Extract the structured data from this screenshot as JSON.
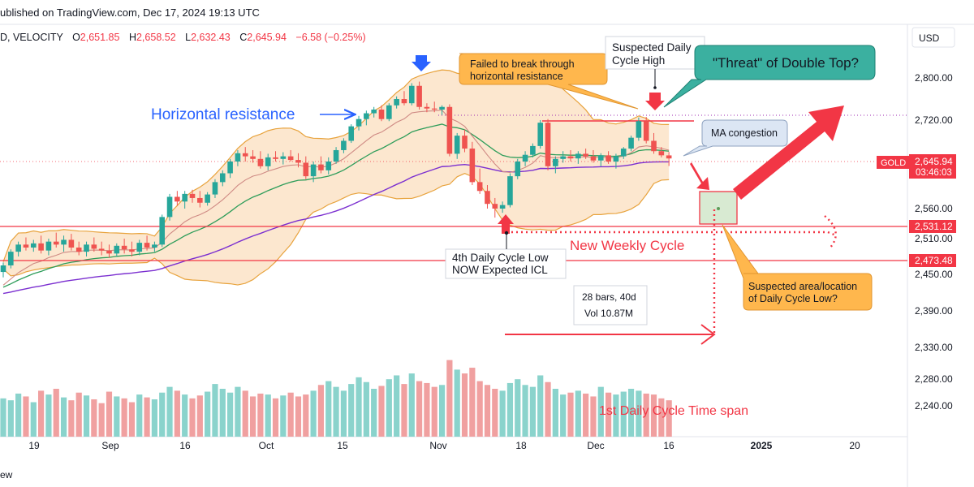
{
  "header": {
    "published": "ublished on TradingView.com, Dec 17, 2024 19:13 UTC"
  },
  "legend": {
    "symbol": "D, VELOCITY",
    "o_label": "O",
    "o_value": "2,651.85",
    "h_label": "H",
    "h_value": "2,658.52",
    "l_label": "L",
    "l_value": "2,632.43",
    "c_label": "C",
    "c_value": "2,645.94",
    "change": "−6.58 (−0.25%)"
  },
  "footer": {
    "partial_text": "ew"
  },
  "colors": {
    "up": "#26a69a",
    "down": "#ef5350",
    "vol_up": "#8ad3cc",
    "vol_down": "#f0a0a0",
    "band_fill": "#fbe3c7",
    "band_line": "#e8a33d",
    "ma_purple": "#7b2fd0",
    "ma_green": "#2e9d5a",
    "ma_brown": "#cf8a84",
    "accent_red": "#f23645",
    "blue_text": "#2962ff"
  },
  "chart_data": {
    "type": "candlestick",
    "instrument": "GOLD",
    "y_axis": {
      "currency": "USD",
      "ticks": [
        2800,
        2720,
        2640,
        2560,
        2510,
        2450,
        2390,
        2330,
        2280,
        2240
      ],
      "tick_labels": [
        "2,800.00",
        "2,720.00",
        "2,640.00",
        "2,560.00",
        "2,510.00",
        "2,450.00",
        "2,390.00",
        "2,330.00",
        "2,280.00",
        "2,240.00"
      ]
    },
    "x_axis": {
      "labels": [
        "19",
        "Sep",
        "16",
        "Oct",
        "15",
        "Nov",
        "18",
        "Dec",
        "16",
        "2025",
        "20"
      ]
    },
    "price_tags": [
      {
        "label": "GOLD",
        "value": "2,645.94",
        "countdown": "03:46:03"
      },
      {
        "value": "2,531.12"
      },
      {
        "value": "2,473.48"
      }
    ],
    "candles": [
      [
        2454,
        2470,
        2445,
        2465
      ],
      [
        2465,
        2492,
        2460,
        2488
      ],
      [
        2488,
        2505,
        2480,
        2500
      ],
      [
        2500,
        2512,
        2490,
        2495
      ],
      [
        2495,
        2508,
        2488,
        2502
      ],
      [
        2502,
        2515,
        2485,
        2490
      ],
      [
        2490,
        2510,
        2482,
        2505
      ],
      [
        2505,
        2520,
        2495,
        2500
      ],
      [
        2500,
        2515,
        2488,
        2508
      ],
      [
        2508,
        2518,
        2490,
        2495
      ],
      [
        2495,
        2505,
        2482,
        2488
      ],
      [
        2488,
        2505,
        2480,
        2500
      ],
      [
        2500,
        2512,
        2488,
        2493
      ],
      [
        2493,
        2505,
        2482,
        2490
      ],
      [
        2490,
        2500,
        2478,
        2485
      ],
      [
        2485,
        2502,
        2480,
        2498
      ],
      [
        2498,
        2510,
        2485,
        2492
      ],
      [
        2492,
        2505,
        2480,
        2488
      ],
      [
        2488,
        2508,
        2482,
        2503
      ],
      [
        2503,
        2515,
        2490,
        2495
      ],
      [
        2495,
        2505,
        2488,
        2500
      ],
      [
        2500,
        2550,
        2496,
        2546
      ],
      [
        2546,
        2585,
        2540,
        2580
      ],
      [
        2580,
        2590,
        2565,
        2572
      ],
      [
        2572,
        2590,
        2560,
        2585
      ],
      [
        2585,
        2592,
        2570,
        2578
      ],
      [
        2578,
        2590,
        2562,
        2570
      ],
      [
        2570,
        2588,
        2565,
        2584
      ],
      [
        2584,
        2610,
        2578,
        2605
      ],
      [
        2605,
        2625,
        2598,
        2620
      ],
      [
        2620,
        2645,
        2612,
        2640
      ],
      [
        2640,
        2662,
        2632,
        2656
      ],
      [
        2656,
        2668,
        2640,
        2650
      ],
      [
        2650,
        2662,
        2638,
        2645
      ],
      [
        2645,
        2660,
        2628,
        2632
      ],
      [
        2632,
        2655,
        2625,
        2648
      ],
      [
        2648,
        2660,
        2640,
        2645
      ],
      [
        2645,
        2658,
        2635,
        2650
      ],
      [
        2650,
        2662,
        2640,
        2643
      ],
      [
        2643,
        2656,
        2630,
        2638
      ],
      [
        2638,
        2650,
        2610,
        2615
      ],
      [
        2615,
        2640,
        2605,
        2635
      ],
      [
        2635,
        2650,
        2620,
        2625
      ],
      [
        2625,
        2648,
        2618,
        2640
      ],
      [
        2640,
        2668,
        2636,
        2662
      ],
      [
        2662,
        2685,
        2656,
        2680
      ],
      [
        2680,
        2712,
        2676,
        2708
      ],
      [
        2708,
        2728,
        2700,
        2722
      ],
      [
        2722,
        2738,
        2710,
        2733
      ],
      [
        2733,
        2745,
        2725,
        2740
      ],
      [
        2740,
        2748,
        2718,
        2722
      ],
      [
        2722,
        2752,
        2718,
        2748
      ],
      [
        2748,
        2765,
        2742,
        2760
      ],
      [
        2760,
        2775,
        2748,
        2752
      ],
      [
        2752,
        2790,
        2748,
        2785
      ],
      [
        2785,
        2793,
        2740,
        2745
      ],
      [
        2745,
        2752,
        2735,
        2742
      ],
      [
        2742,
        2755,
        2735,
        2740
      ],
      [
        2740,
        2748,
        2730,
        2745
      ],
      [
        2745,
        2750,
        2650,
        2655
      ],
      [
        2655,
        2695,
        2645,
        2690
      ],
      [
        2690,
        2702,
        2658,
        2665
      ],
      [
        2665,
        2678,
        2600,
        2605
      ],
      [
        2605,
        2628,
        2585,
        2590
      ],
      [
        2590,
        2600,
        2560,
        2568
      ],
      [
        2568,
        2578,
        2545,
        2560
      ],
      [
        2560,
        2572,
        2553,
        2566
      ],
      [
        2566,
        2620,
        2562,
        2615
      ],
      [
        2615,
        2645,
        2610,
        2640
      ],
      [
        2640,
        2660,
        2632,
        2653
      ],
      [
        2653,
        2675,
        2648,
        2670
      ],
      [
        2670,
        2720,
        2665,
        2715
      ],
      [
        2715,
        2722,
        2625,
        2632
      ],
      [
        2632,
        2650,
        2620,
        2645
      ],
      [
        2645,
        2660,
        2638,
        2650
      ],
      [
        2650,
        2662,
        2640,
        2646
      ],
      [
        2646,
        2660,
        2636,
        2655
      ],
      [
        2655,
        2665,
        2645,
        2650
      ],
      [
        2650,
        2662,
        2638,
        2642
      ],
      [
        2642,
        2656,
        2632,
        2652
      ],
      [
        2652,
        2660,
        2636,
        2640
      ],
      [
        2640,
        2655,
        2628,
        2650
      ],
      [
        2650,
        2668,
        2645,
        2665
      ],
      [
        2665,
        2690,
        2660,
        2686
      ],
      [
        2686,
        2725,
        2680,
        2718
      ],
      [
        2718,
        2726,
        2675,
        2680
      ],
      [
        2680,
        2695,
        2655,
        2660
      ],
      [
        2660,
        2668,
        2648,
        2652
      ],
      [
        2651.85,
        2658.52,
        2632.43,
        2645.94
      ]
    ],
    "volume": [
      40,
      38,
      45,
      42,
      36,
      48,
      44,
      50,
      41,
      38,
      46,
      43,
      39,
      35,
      47,
      42,
      40,
      36,
      44,
      41,
      39,
      46,
      52,
      48,
      44,
      40,
      43,
      47,
      55,
      50,
      46,
      52,
      48,
      42,
      45,
      44,
      40,
      43,
      46,
      42,
      44,
      48,
      54,
      58,
      52,
      48,
      55,
      62,
      57,
      50,
      53,
      60,
      64,
      55,
      66,
      58,
      56,
      52,
      54,
      80,
      70,
      66,
      72,
      58,
      54,
      50,
      48,
      56,
      60,
      54,
      52,
      64,
      57,
      50,
      44,
      46,
      48,
      45,
      42,
      52,
      46,
      44,
      47,
      50,
      48,
      45,
      44,
      40,
      38
    ],
    "annotations": [
      {
        "text": "Horizontal resistance"
      },
      {
        "text": "Failed to break through horizontal resistance"
      },
      {
        "text": "Suspected Daily Cycle High"
      },
      {
        "text": "\"Threat\" of Double Top?"
      },
      {
        "text": "MA congestion"
      },
      {
        "text": "New Weekly Cycle"
      },
      {
        "text": "4th Daily Cycle Low NOW Expected ICL"
      },
      {
        "text": "Suspected area/location of Daily Cycle Low?"
      },
      {
        "text": "1st Daily Cycle Time span"
      }
    ],
    "measure_tool": {
      "bars_label": "28 bars, 40d",
      "volume_label": "Vol 10.87M"
    }
  },
  "texts": {
    "horizontal_resistance": "Horizontal resistance",
    "failed_line1": "Failed to break through",
    "failed_line2": "horizontal resistance",
    "cycle_high_line1": "Suspected Daily",
    "cycle_high_line2": "Cycle High",
    "double_top": "\"Threat\" of Double Top?",
    "ma_congestion": "MA congestion",
    "new_weekly_cycle": "New Weekly Cycle",
    "icl_line1": "4th Daily Cycle Low",
    "icl_line2": "NOW Expected ICL",
    "suspected_line1": "Suspected area/location",
    "suspected_line2": "of Daily Cycle Low?",
    "time_span": "1st Daily Cycle Time span"
  }
}
